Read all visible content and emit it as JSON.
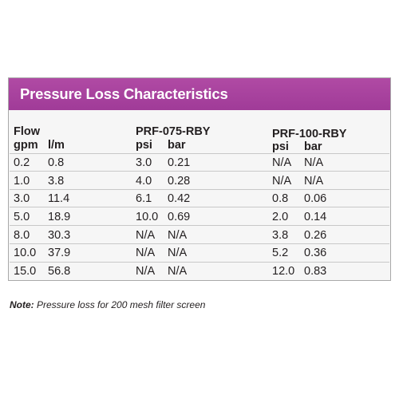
{
  "table": {
    "title": "Pressure Loss Characteristics",
    "headers": {
      "flow_group": "Flow",
      "gpm": "gpm",
      "lpm": "l/m",
      "model1": "PRF-075-RBY",
      "model2": "PRF-100-RBY",
      "psi": "psi",
      "bar": "bar"
    },
    "rows": [
      [
        "0.2",
        "0.8",
        "3.0",
        "0.21",
        "N/A",
        "N/A"
      ],
      [
        "1.0",
        "3.8",
        "4.0",
        "0.28",
        "N/A",
        "N/A"
      ],
      [
        "3.0",
        "11.4",
        "6.1",
        "0.42",
        "0.8",
        "0.06"
      ],
      [
        "5.0",
        "18.9",
        "10.0",
        "0.69",
        "2.0",
        "0.14"
      ],
      [
        "8.0",
        "30.3",
        "N/A",
        "N/A",
        "3.8",
        "0.26"
      ],
      [
        "10.0",
        "37.9",
        "N/A",
        "N/A",
        "5.2",
        "0.36"
      ],
      [
        "15.0",
        "56.8",
        "N/A",
        "N/A",
        "12.0",
        "0.83"
      ]
    ]
  },
  "note": {
    "label": "Note:",
    "text": " Pressure loss for 200 mesh filter screen"
  },
  "colors": {
    "title_bar": "#a63f9c",
    "title_text": "#ffffff",
    "panel_bg": "#f6f6f6",
    "row_line": "#c8c8c8"
  }
}
